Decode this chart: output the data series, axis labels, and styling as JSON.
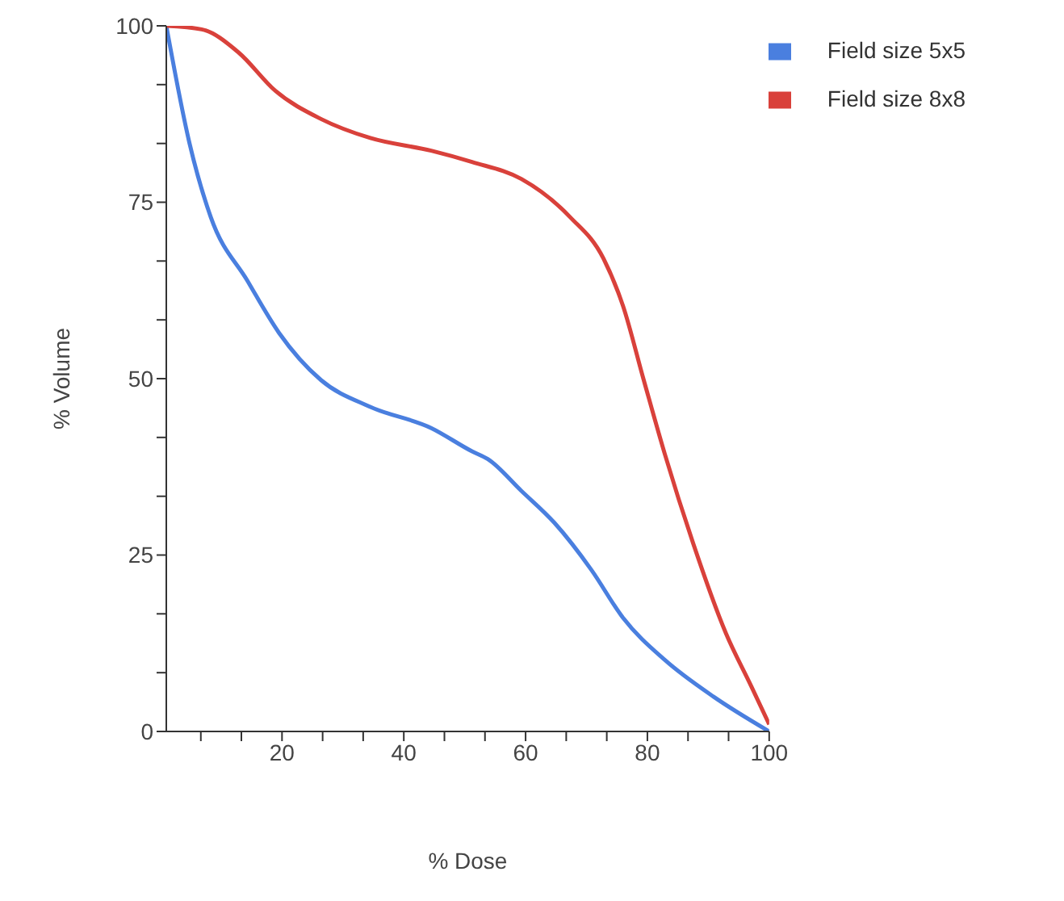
{
  "chart_data": {
    "type": "line",
    "xlabel": "% Dose",
    "ylabel": "% Volume",
    "xlim": [
      1,
      100
    ],
    "ylim": [
      0,
      100
    ],
    "xticks": [
      {
        "value": 6.67,
        "label": null
      },
      {
        "value": 13.33,
        "label": null
      },
      20,
      {
        "value": 26.67,
        "label": null
      },
      {
        "value": 33.33,
        "label": null
      },
      40,
      {
        "value": 46.67,
        "label": null
      },
      {
        "value": 53.33,
        "label": null
      },
      60,
      {
        "value": 66.67,
        "label": null
      },
      {
        "value": 73.33,
        "label": null
      },
      80,
      {
        "value": 86.67,
        "label": null
      },
      {
        "value": 93.33,
        "label": null
      },
      100
    ],
    "yticks": [
      0,
      {
        "value": 8.33,
        "label": null
      },
      {
        "value": 16.67,
        "label": null
      },
      25,
      {
        "value": 33.33,
        "label": null
      },
      {
        "value": 41.67,
        "label": null
      },
      50,
      {
        "value": 58.33,
        "label": null
      },
      {
        "value": 66.67,
        "label": null
      },
      75,
      {
        "value": 83.33,
        "label": null
      },
      {
        "value": 91.67,
        "label": null
      },
      100
    ],
    "grid": false,
    "legend": "top right",
    "marker": "none",
    "line_style": "solid",
    "series": [
      {
        "name": "Field size 5x5",
        "color": "#4a7fdf",
        "x": [
          1,
          4.8,
          8.3,
          14.3,
          19.5,
          26.4,
          34.5,
          44.5,
          51.2,
          53.8,
          59.3,
          64.7,
          70.8,
          76,
          82.9,
          90.9,
          100
        ],
        "values": [
          100,
          83.4,
          72.9,
          63.9,
          56.5,
          49.8,
          46,
          43,
          39.7,
          38.6,
          34.1,
          29.6,
          22.9,
          16.1,
          10.1,
          4.9,
          0
        ]
      },
      {
        "name": "Field size 8x8",
        "color": "#d9413b",
        "x": [
          1,
          6.8,
          12.9,
          18.9,
          26.4,
          34.5,
          44.5,
          51.2,
          59.3,
          67.3,
          72.8,
          76,
          79.4,
          82.9,
          87.5,
          92.9,
          97,
          100
        ],
        "values": [
          100,
          99.5,
          96.2,
          90.8,
          86.8,
          84.1,
          82.3,
          80.7,
          78.3,
          72.9,
          67,
          60.3,
          49.8,
          39.2,
          26.7,
          13.9,
          6.5,
          1
        ]
      }
    ]
  }
}
